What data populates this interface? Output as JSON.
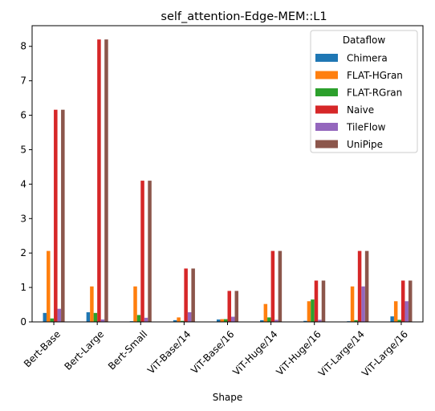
{
  "chart_data": {
    "type": "bar",
    "title": "self_attention-Edge-MEM::L1",
    "xlabel": "Shape",
    "ylabel": "",
    "ylim": [
      0,
      8.6
    ],
    "yticks": [
      0,
      1,
      2,
      3,
      4,
      5,
      6,
      7,
      8
    ],
    "grid": false,
    "legend_title": "Dataflow",
    "legend_position": "top-right",
    "categories": [
      "Bert-Base",
      "Bert-Large",
      "Bert-Small",
      "ViT-Base/14",
      "ViT-Base/16",
      "ViT-Huge/14",
      "ViT-Huge/16",
      "ViT-Large/14",
      "ViT-Large/16"
    ],
    "series": [
      {
        "name": "Chimera",
        "color": "#1f77b4",
        "values": [
          0.26,
          0.28,
          0.02,
          0.05,
          0.07,
          0.05,
          0.03,
          0.02,
          0.16
        ]
      },
      {
        "name": "FLAT-HGran",
        "color": "#ff7f0e",
        "values": [
          2.06,
          1.03,
          1.03,
          0.13,
          0.08,
          0.52,
          0.6,
          1.03,
          0.6
        ]
      },
      {
        "name": "FLAT-RGran",
        "color": "#2ca02c",
        "values": [
          0.1,
          0.26,
          0.2,
          0.03,
          0.08,
          0.13,
          0.65,
          0.05,
          0.06
        ]
      },
      {
        "name": "Naive",
        "color": "#d62728",
        "values": [
          6.16,
          8.2,
          4.1,
          1.55,
          0.9,
          2.06,
          1.2,
          2.06,
          1.2
        ]
      },
      {
        "name": "TileFlow",
        "color": "#9467bd",
        "values": [
          0.38,
          0.07,
          0.12,
          0.28,
          0.15,
          0.06,
          0.06,
          1.03,
          0.6
        ]
      },
      {
        "name": "UniPipe",
        "color": "#8c564b",
        "values": [
          6.16,
          8.2,
          4.1,
          1.55,
          0.9,
          2.06,
          1.2,
          2.06,
          1.2
        ]
      }
    ]
  }
}
